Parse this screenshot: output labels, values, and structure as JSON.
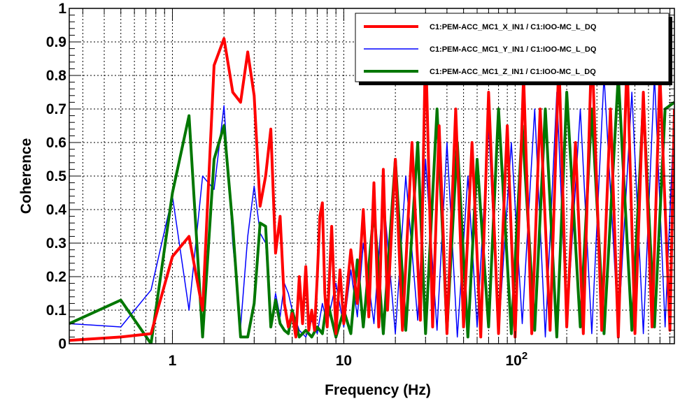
{
  "chart_data": {
    "type": "line",
    "title": "",
    "xlabel": "Frequency (Hz)",
    "ylabel": "Coherence",
    "xscale": "log",
    "xlim": [
      0.25,
      850
    ],
    "ylim": [
      0,
      1
    ],
    "x_tick_labels": [
      {
        "value": 1,
        "text": "1"
      },
      {
        "value": 10,
        "text": "10"
      },
      {
        "value": 100,
        "base": "10",
        "exp": "2"
      }
    ],
    "y_ticks": [
      0,
      0.1,
      0.2,
      0.3,
      0.4,
      0.5,
      0.6,
      0.7,
      0.8,
      0.9,
      1
    ],
    "y_tick_labels": [
      "0",
      "0.1",
      "0.2",
      "0.3",
      "0.4",
      "0.5",
      "0.6",
      "0.7",
      "0.8",
      "0.9",
      "1"
    ],
    "grid": true,
    "legend_position": "top-right",
    "series": [
      {
        "name": "C1:PEM-ACC_MC1_X_IN1 / C1:IOO-MC_L_DQ",
        "color": "#ff0000",
        "x": [
          0.25,
          0.5,
          0.75,
          1.0,
          1.25,
          1.5,
          1.75,
          2.0,
          2.25,
          2.5,
          2.75,
          3.0,
          3.25,
          3.5,
          3.75,
          4.0,
          4.25,
          4.5,
          4.75,
          5.0,
          5.25,
          5.5,
          5.75,
          6.0,
          6.25,
          6.5,
          6.75,
          7.0,
          7.25,
          7.5,
          7.75,
          8.0,
          8.5,
          9.0,
          9.5,
          10.0,
          11,
          12,
          13,
          14,
          15,
          16,
          17,
          18,
          20,
          22,
          25,
          28,
          30,
          33,
          36,
          40,
          45,
          50,
          56,
          63,
          70,
          80,
          90,
          100,
          112,
          125,
          140,
          160,
          180,
          200,
          225,
          250,
          280,
          320,
          360,
          400,
          450,
          500,
          560,
          630,
          700,
          800,
          850
        ],
        "y": [
          0.01,
          0.02,
          0.03,
          0.26,
          0.32,
          0.1,
          0.83,
          0.91,
          0.75,
          0.72,
          0.87,
          0.74,
          0.41,
          0.5,
          0.64,
          0.27,
          0.38,
          0.12,
          0.05,
          0.09,
          0.02,
          0.2,
          0.06,
          0.23,
          0.04,
          0.1,
          0.04,
          0.2,
          0.38,
          0.42,
          0.15,
          0.05,
          0.35,
          0.03,
          0.22,
          0.06,
          0.28,
          0.12,
          0.4,
          0.08,
          0.48,
          0.05,
          0.52,
          0.1,
          0.55,
          0.04,
          0.6,
          0.07,
          0.9,
          0.05,
          0.65,
          0.03,
          0.7,
          0.05,
          0.6,
          0.02,
          0.75,
          0.03,
          0.65,
          0.02,
          0.8,
          0.03,
          0.7,
          0.04,
          0.85,
          0.05,
          0.6,
          0.03,
          0.9,
          0.04,
          0.7,
          0.02,
          0.85,
          0.03,
          0.75,
          0.05,
          0.8,
          0.04,
          0.7
        ]
      },
      {
        "name": "C1:PEM-ACC_MC1_Y_IN1 / C1:IOO-MC_L_DQ",
        "color": "#0000ff",
        "x": [
          0.25,
          0.5,
          0.75,
          1.0,
          1.25,
          1.5,
          1.75,
          2.0,
          2.25,
          2.5,
          2.75,
          3.0,
          3.25,
          3.5,
          3.75,
          4.0,
          4.25,
          4.5,
          4.75,
          5.0,
          5.5,
          6.0,
          6.5,
          7.0,
          7.5,
          8.0,
          9.0,
          10,
          11,
          12,
          13,
          15,
          17,
          20,
          23,
          27,
          30,
          35,
          40,
          46,
          53,
          60,
          70,
          80,
          95,
          110,
          130,
          150,
          175,
          200,
          240,
          280,
          330,
          400,
          480,
          560,
          650,
          750,
          850
        ],
        "y": [
          0.06,
          0.05,
          0.16,
          0.44,
          0.1,
          0.5,
          0.46,
          0.71,
          0.3,
          0.05,
          0.32,
          0.47,
          0.33,
          0.3,
          0.05,
          0.15,
          0.08,
          0.18,
          0.15,
          0.1,
          0.04,
          0.02,
          0.07,
          0.03,
          0.12,
          0.06,
          0.18,
          0.05,
          0.22,
          0.08,
          0.3,
          0.06,
          0.45,
          0.03,
          0.5,
          0.07,
          0.55,
          0.04,
          0.6,
          0.02,
          0.5,
          0.05,
          0.65,
          0.03,
          0.6,
          0.06,
          0.7,
          0.02,
          0.75,
          0.05,
          0.7,
          0.03,
          0.8,
          0.04,
          0.75,
          0.03,
          0.8,
          0.05,
          0.7
        ]
      },
      {
        "name": "C1:PEM-ACC_MC1_Z_IN1 / C1:IOO-MC_L_DQ",
        "color": "#007700",
        "x": [
          0.25,
          0.5,
          0.75,
          1.0,
          1.25,
          1.5,
          1.75,
          2.0,
          2.25,
          2.5,
          2.75,
          3.0,
          3.25,
          3.5,
          3.75,
          4.0,
          4.25,
          4.5,
          4.75,
          5.0,
          5.5,
          6.0,
          6.5,
          7.0,
          7.5,
          8.0,
          9.0,
          10,
          11,
          12,
          13,
          15,
          17,
          20,
          23,
          27,
          30,
          35,
          40,
          46,
          53,
          60,
          70,
          80,
          95,
          110,
          130,
          150,
          175,
          200,
          240,
          280,
          330,
          400,
          480,
          560,
          650,
          750,
          850
        ],
        "y": [
          0.06,
          0.13,
          0.0,
          0.45,
          0.68,
          0.02,
          0.55,
          0.65,
          0.35,
          0.02,
          0.02,
          0.12,
          0.36,
          0.35,
          0.05,
          0.13,
          0.06,
          0.04,
          0.03,
          0.1,
          0.02,
          0.04,
          0.02,
          0.05,
          0.03,
          0.13,
          0.02,
          0.1,
          0.03,
          0.25,
          0.05,
          0.4,
          0.03,
          0.55,
          0.04,
          0.6,
          0.03,
          0.7,
          0.04,
          0.6,
          0.02,
          0.55,
          0.05,
          0.7,
          0.03,
          0.65,
          0.04,
          0.7,
          0.02,
          0.75,
          0.05,
          0.7,
          0.03,
          0.8,
          0.04,
          0.72,
          0.05,
          0.7,
          0.72
        ]
      }
    ]
  }
}
